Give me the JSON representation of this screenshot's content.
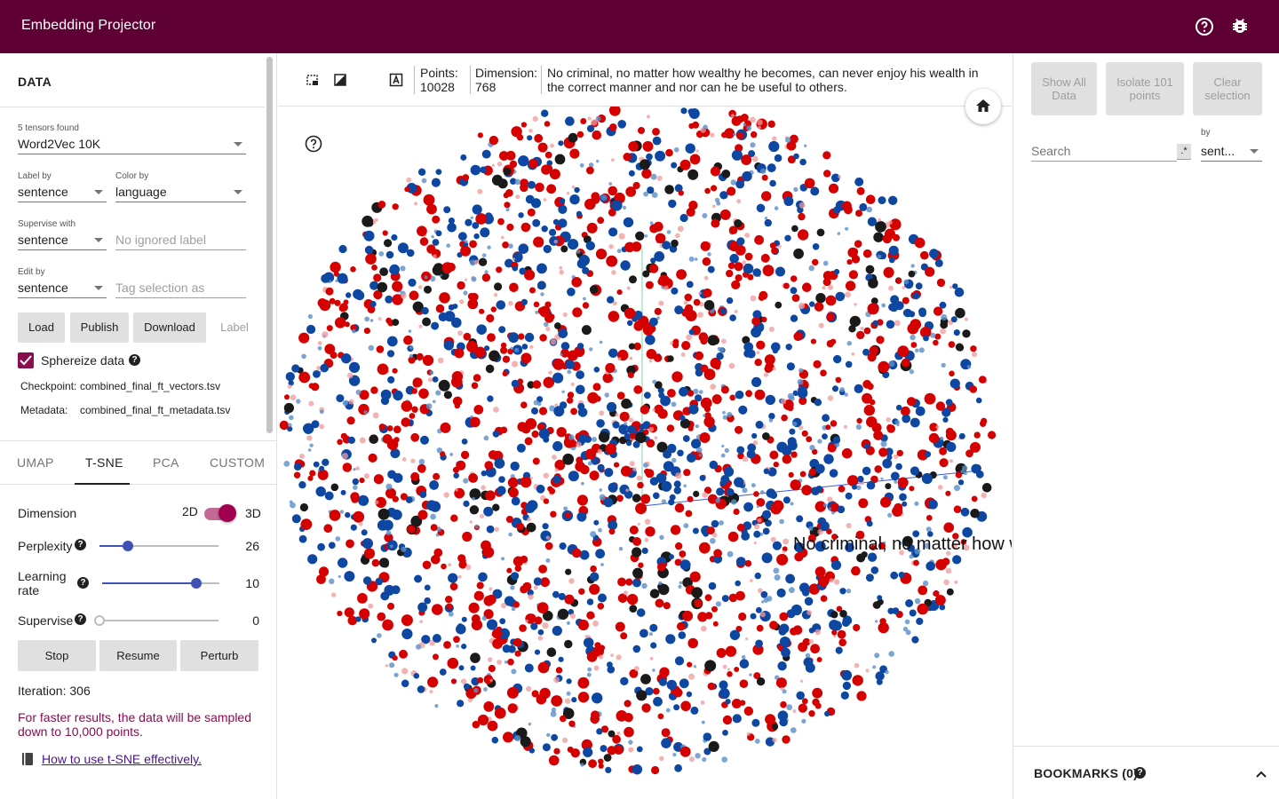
{
  "header": {
    "title": "Embedding Projector"
  },
  "data_panel": {
    "section_title": "DATA",
    "tensors_label": "5 tensors found",
    "tensor_value": "Word2Vec 10K",
    "label_by_label": "Label by",
    "label_by_value": "sentence",
    "color_by_label": "Color by",
    "color_by_value": "language",
    "supervise_with_label": "Supervise with",
    "supervise_with_value": "sentence",
    "ignored_label_placeholder": "No ignored label",
    "edit_by_label": "Edit by",
    "edit_by_value": "sentence",
    "tag_placeholder": "Tag selection as",
    "buttons": {
      "load": "Load",
      "publish": "Publish",
      "download": "Download",
      "label": "Label"
    },
    "sphereize_label": "Sphereize data",
    "checkpoint_label": "Checkpoint:",
    "checkpoint_value": "combined_final_ft_vectors.tsv",
    "metadata_label": "Metadata:",
    "metadata_value": "combined_final_ft_metadata.tsv"
  },
  "projection": {
    "tabs": [
      "UMAP",
      "T-SNE",
      "PCA",
      "CUSTOM"
    ],
    "active_tab": "T-SNE",
    "dimension_label": "Dimension",
    "dim_2d": "2D",
    "dim_3d": "3D",
    "perplexity_label": "Perplexity",
    "perplexity_value": "26",
    "perplexity_fraction": 0.24,
    "learning_rate_label_1": "Learning",
    "learning_rate_label_2": "rate",
    "learning_rate_value": "10",
    "learning_rate_fraction": 0.8,
    "supervise_label": "Supervise",
    "supervise_value": "0",
    "supervise_fraction": 0,
    "buttons": {
      "stop": "Stop",
      "resume": "Resume",
      "perturb": "Perturb"
    },
    "iteration": "Iteration: 306",
    "warning": "For faster results, the data will be sampled down to 10,000 points.",
    "help_link": "How to use t-SNE effectively."
  },
  "toolbar": {
    "points_label": "Points:",
    "points_value": "10028",
    "dimension_label": "Dimension:",
    "dimension_value": "768",
    "selected_text": "No criminal, no matter how wealthy he becomes, can never enjoy his wealth in the correct manner and nor can he be useful to others."
  },
  "plot": {
    "hover_label": "No criminal, no matter how w",
    "colors": {
      "red": "#d50000",
      "blue": "#0d47a1",
      "light_blue": "#5b8fc9",
      "pink": "#ef9a9a",
      "dark": "#1a1a1a"
    }
  },
  "inspector": {
    "show_all": "Show All Data",
    "isolate": "Isolate 101 points",
    "clear": "Clear selection",
    "search_placeholder": "Search",
    "regex": ".*",
    "by_label": "by",
    "by_value": "sent..."
  },
  "bookmarks": {
    "title": "BOOKMARKS (0)"
  }
}
